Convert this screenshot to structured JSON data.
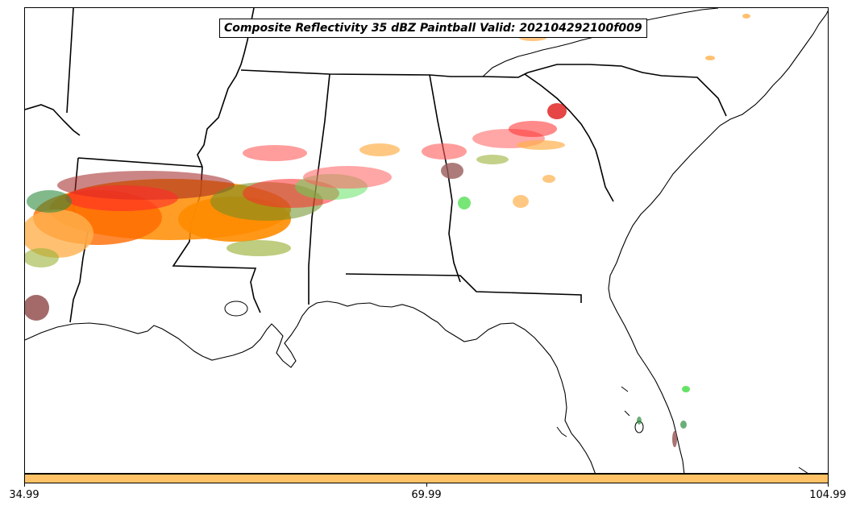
{
  "title": "Composite Reflectivity 35 dBZ Paintball Valid: 202104292100f009",
  "colorbar": {
    "color": "#ffc266",
    "ticks": [
      "34.99",
      "69.99",
      "104.99"
    ]
  },
  "map": {
    "region": "Southeastern United States",
    "features": [
      "coastline",
      "state-borders",
      "reflectivity-paintball"
    ]
  },
  "paintball_colors": [
    "#ff8c00",
    "#ff2a2a",
    "#ff5c5c",
    "#a02020",
    "#9a5a5a",
    "#6b8e23",
    "#9bb23b",
    "#2e8b3e",
    "#55e055",
    "#ffb14d"
  ],
  "chart_data": {
    "type": "heatmap",
    "title": "Composite Reflectivity 35 dBZ Paintball Valid: 202104292100f009",
    "xlabel": "",
    "ylabel": "",
    "colorbar_ticks": [
      34.99,
      69.99,
      104.99
    ]
  }
}
